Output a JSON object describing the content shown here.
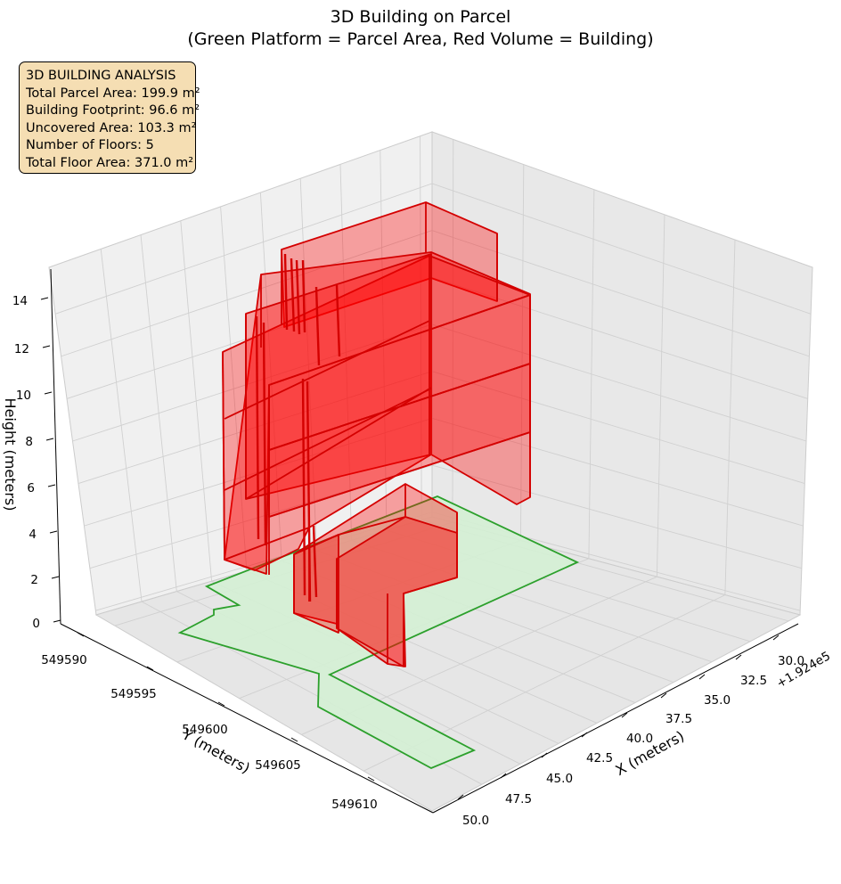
{
  "chart_title": {
    "line1": "3D Building on Parcel",
    "line2": "(Green Platform = Parcel Area, Red Volume = Building)"
  },
  "info_box": {
    "heading": "3D BUILDING ANALYSIS",
    "total_parcel_area": "Total Parcel Area: 199.9 m²",
    "building_footprint": "Building Footprint: 96.6 m²",
    "uncovered_area": "Uncovered Area: 103.3 m²",
    "floors": "Number of Floors: 5",
    "total_floor_area": "Total Floor Area: 371.0 m²"
  },
  "colors": {
    "parcel_fill": "#d4f0d4",
    "parcel_edge": "#2ca02c",
    "building_fill": "#ff0000",
    "building_edge": "#d40000",
    "pane": "#f2f2f2",
    "grid": "#d0d0d0"
  },
  "chart_data": {
    "type": "3d-polygon",
    "x_label": "X (meters)",
    "y_label": "Y (meters)",
    "z_label": "Height (meters)",
    "x_offset_label": "+1.924e5",
    "x_ticks": [
      "30.0",
      "32.5",
      "35.0",
      "37.5",
      "40.0",
      "42.5",
      "45.0",
      "47.5",
      "50.0"
    ],
    "y_ticks": [
      "549590",
      "549595",
      "549600",
      "549605",
      "549610"
    ],
    "z_ticks": [
      "0",
      "2",
      "4",
      "6",
      "8",
      "10",
      "12",
      "14"
    ],
    "parcel_area_m2": 199.9,
    "building_footprint_m2": 96.6,
    "uncovered_area_m2": 103.3,
    "floors": 5,
    "total_floor_area_m2": 371.0
  }
}
